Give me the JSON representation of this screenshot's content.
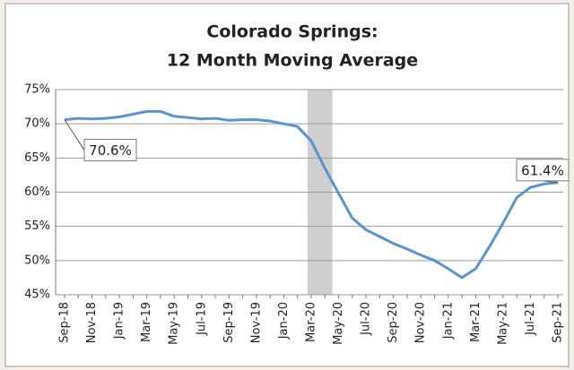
{
  "chart_data": {
    "type": "line",
    "title": [
      "Colorado Springs:",
      "12 Month Moving Average"
    ],
    "categories": [
      "Sep-18",
      null,
      "Nov-18",
      null,
      "Jan-19",
      null,
      "Mar-19",
      null,
      "May-19",
      null,
      "Jul-19",
      null,
      "Sep-19",
      null,
      "Nov-19",
      null,
      "Jan-20",
      null,
      "Mar-20",
      null,
      "May-20",
      null,
      "Jul-20",
      null,
      "Sep-20",
      null,
      "Nov-20",
      null,
      "Jan-21",
      null,
      "Mar-21",
      null,
      "May-21",
      null,
      "Jul-21",
      null,
      "Sep-21"
    ],
    "series": [
      {
        "color": "#5b93cf",
        "values": [
          70.6,
          70.8,
          70.7,
          70.8,
          71.0,
          71.4,
          71.8,
          71.8,
          71.1,
          70.9,
          70.7,
          70.8,
          70.5,
          70.6,
          70.6,
          70.4,
          70.0,
          69.6,
          67.5,
          63.5,
          59.8,
          56.2,
          54.5,
          53.5,
          52.5,
          51.7,
          50.8,
          50.0,
          48.8,
          47.5,
          48.8,
          52.0,
          55.5,
          59.2,
          60.7,
          61.2,
          61.4
        ],
        "value_labels": {
          "0": "70.6%",
          "36": "61.4%"
        }
      }
    ],
    "ylim": [
      45,
      75
    ],
    "yticks": [
      {
        "value": 45,
        "label": "45%"
      },
      {
        "value": 50,
        "label": "50%"
      },
      {
        "value": 55,
        "label": "55%"
      },
      {
        "value": 60,
        "label": "60%"
      },
      {
        "value": 65,
        "label": "65%"
      },
      {
        "value": 70,
        "label": "70%"
      },
      {
        "value": 75,
        "label": "75%"
      }
    ],
    "grid": true,
    "shaded_range": [
      "Mar-20",
      "May-20"
    ]
  }
}
